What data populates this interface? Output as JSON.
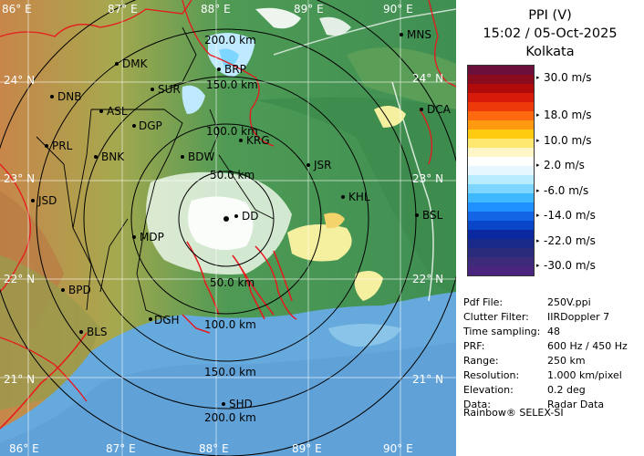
{
  "title": {
    "product": "PPI (V)",
    "datetime": "15:02 / 05-Oct-2025",
    "station": "Kolkata"
  },
  "colorbar": {
    "labels": [
      "30.0 m/s",
      "18.0 m/s",
      "10.0 m/s",
      "2.0 m/s",
      "-6.0 m/s",
      "-14.0 m/s",
      "-22.0 m/s",
      "-30.0 m/s"
    ],
    "colors": [
      "#6b0f3b",
      "#8a0a1e",
      "#b00a0a",
      "#d81a0a",
      "#ee3a0a",
      "#ff6a10",
      "#ff9a10",
      "#ffcb10",
      "#ffe870",
      "#fff6c8",
      "#ffffff",
      "#e6f7ff",
      "#b8ecff",
      "#7dd6ff",
      "#3fb8ff",
      "#1e90ff",
      "#1464e6",
      "#0a46c8",
      "#0a28a0",
      "#1a2a8a",
      "#2a2a7a",
      "#3d2a78",
      "#4a2580"
    ]
  },
  "metadata": [
    {
      "key": "Pdf File:",
      "value": "250V.ppi"
    },
    {
      "key": "Clutter Filter:",
      "value": "IIRDoppler 7"
    },
    {
      "key": "Time sampling:",
      "value": "48"
    },
    {
      "key": "PRF:",
      "value": "600 Hz / 450 Hz"
    },
    {
      "key": "Range:",
      "value": "250 km"
    },
    {
      "key": "Resolution:",
      "value": "1.000 km/pixel"
    },
    {
      "key": "Elevation:",
      "value": "0.2 deg"
    },
    {
      "key": "Data:",
      "value": "Radar Data"
    }
  ],
  "footer": "Rainbow® SELEX-SI",
  "map": {
    "lon_labels": [
      "86° E",
      "87° E",
      "88° E",
      "89° E",
      "90° E"
    ],
    "lat_labels": [
      "24° N",
      "23° N",
      "22° N",
      "21° N"
    ],
    "range_labels": [
      "50.0 km",
      "100.0 km",
      "150.0 km",
      "200.0 km"
    ],
    "cities": [
      {
        "name": "MNS"
      },
      {
        "name": "DMK"
      },
      {
        "name": "BRP"
      },
      {
        "name": "DNB"
      },
      {
        "name": "SUR"
      },
      {
        "name": "ASL"
      },
      {
        "name": "DGP"
      },
      {
        "name": "DCA"
      },
      {
        "name": "PRL"
      },
      {
        "name": "BNK"
      },
      {
        "name": "KRG"
      },
      {
        "name": "BDW"
      },
      {
        "name": "JSR"
      },
      {
        "name": "KHL"
      },
      {
        "name": "JSD"
      },
      {
        "name": "DD"
      },
      {
        "name": "MDP"
      },
      {
        "name": "BSL"
      },
      {
        "name": "BPD"
      },
      {
        "name": "DGH"
      },
      {
        "name": "BLS"
      },
      {
        "name": "SHD"
      }
    ]
  }
}
